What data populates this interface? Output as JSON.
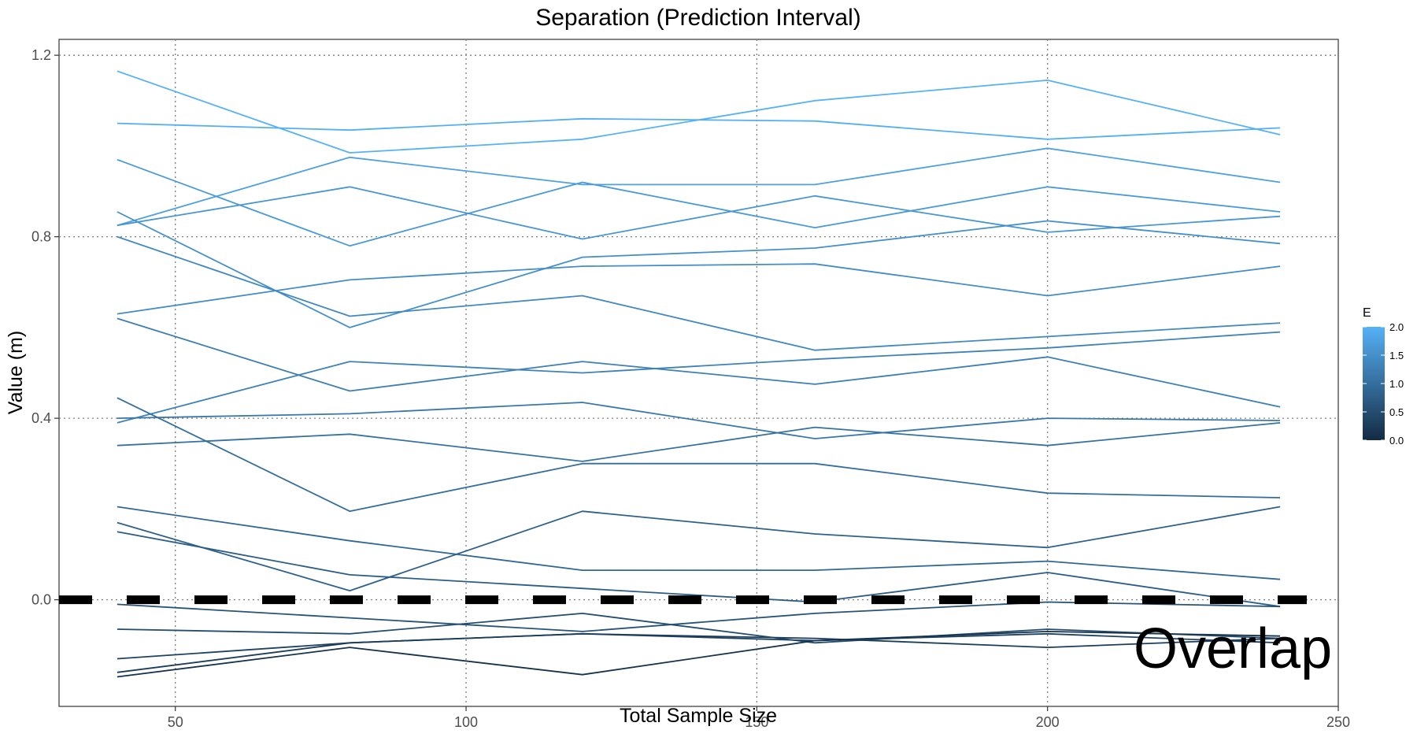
{
  "chart_data": {
    "type": "line",
    "title": "Separation (Prediction Interval)",
    "xlabel": "Total Sample Size",
    "ylabel": "Value (m)",
    "xlim": [
      30,
      250
    ],
    "ylim": [
      -0.235,
      1.235
    ],
    "x_ticks": [
      50,
      100,
      150,
      200,
      250
    ],
    "y_ticks": [
      0.0,
      0.4,
      0.8,
      1.2
    ],
    "x_tick_labels": [
      "50",
      "100",
      "150",
      "200",
      "250"
    ],
    "y_tick_labels": [
      "0.0",
      "0.4",
      "0.8",
      "1.2"
    ],
    "grid": "dotted",
    "x": [
      40,
      80,
      120,
      160,
      200,
      240
    ],
    "reference_line": {
      "y": 0.0,
      "style": "dashed",
      "color": "#000000"
    },
    "annotation": "Overlap",
    "legend": {
      "title": "E",
      "position": "right",
      "range": [
        0.0,
        2.0
      ],
      "ticks": [
        "0.0",
        "0.5",
        "1.0",
        "1.5",
        "2.0"
      ],
      "color_low": "#132B43",
      "color_high": "#56B1F7"
    },
    "series": [
      {
        "e": 2.0,
        "values": [
          1.165,
          0.985,
          1.015,
          1.1,
          1.145,
          1.025
        ]
      },
      {
        "e": 1.95,
        "values": [
          1.05,
          1.035,
          1.06,
          1.055,
          1.015,
          1.04
        ]
      },
      {
        "e": 1.75,
        "values": [
          0.825,
          0.975,
          0.915,
          0.915,
          0.995,
          0.92
        ]
      },
      {
        "e": 1.65,
        "values": [
          0.97,
          0.78,
          0.92,
          0.82,
          0.91,
          0.855
        ]
      },
      {
        "e": 1.6,
        "values": [
          0.825,
          0.91,
          0.795,
          0.89,
          0.81,
          0.845
        ]
      },
      {
        "e": 1.5,
        "values": [
          0.855,
          0.6,
          0.755,
          0.775,
          0.835,
          0.785
        ]
      },
      {
        "e": 1.45,
        "values": [
          0.63,
          0.705,
          0.735,
          0.74,
          0.67,
          0.735
        ]
      },
      {
        "e": 1.4,
        "values": [
          0.8,
          0.625,
          0.67,
          0.55,
          0.58,
          0.61
        ]
      },
      {
        "e": 1.3,
        "values": [
          0.39,
          0.525,
          0.5,
          0.53,
          0.555,
          0.59
        ]
      },
      {
        "e": 1.25,
        "values": [
          0.62,
          0.46,
          0.525,
          0.475,
          0.535,
          0.425
        ]
      },
      {
        "e": 1.15,
        "values": [
          0.4,
          0.41,
          0.435,
          0.355,
          0.4,
          0.395
        ]
      },
      {
        "e": 1.05,
        "values": [
          0.34,
          0.365,
          0.305,
          0.38,
          0.34,
          0.39
        ]
      },
      {
        "e": 1.0,
        "values": [
          0.445,
          0.195,
          0.3,
          0.3,
          0.235,
          0.225
        ]
      },
      {
        "e": 0.9,
        "values": [
          0.205,
          0.13,
          0.065,
          0.065,
          0.085,
          0.045
        ]
      },
      {
        "e": 0.8,
        "values": [
          0.17,
          0.02,
          0.195,
          0.145,
          0.115,
          0.205
        ]
      },
      {
        "e": 0.75,
        "values": [
          0.15,
          0.055,
          0.025,
          -0.005,
          0.06,
          -0.015
        ]
      },
      {
        "e": 0.6,
        "values": [
          -0.01,
          -0.04,
          -0.07,
          -0.03,
          -0.005,
          -0.015
        ]
      },
      {
        "e": 0.5,
        "values": [
          -0.065,
          -0.075,
          -0.03,
          -0.095,
          -0.065,
          -0.085
        ]
      },
      {
        "e": 0.35,
        "values": [
          -0.13,
          -0.095,
          -0.075,
          -0.09,
          -0.075,
          -0.095
        ]
      },
      {
        "e": 0.25,
        "values": [
          -0.16,
          -0.095,
          -0.075,
          -0.085,
          -0.105,
          -0.085
        ]
      },
      {
        "e": 0.1,
        "values": [
          -0.17,
          -0.105,
          -0.165,
          -0.09,
          -0.07,
          -0.08
        ]
      }
    ]
  }
}
